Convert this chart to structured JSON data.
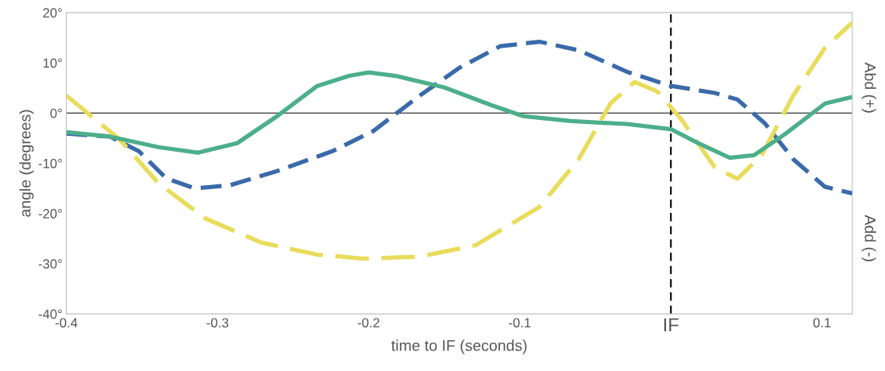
{
  "chart_data": {
    "type": "line",
    "xlabel": "time to IF (seconds)",
    "ylabel": "angle (degrees)",
    "xlim": [
      -0.4,
      0.12
    ],
    "ylim": [
      -40,
      20
    ],
    "xticks": [
      -0.4,
      -0.3,
      -0.2,
      -0.1,
      {
        "value": 0,
        "label": "IF"
      },
      0.1
    ],
    "yticks": [
      {
        "value": -40,
        "label": "-40°"
      },
      {
        "value": -30,
        "label": "-30°"
      },
      {
        "value": -20,
        "label": "-20°"
      },
      {
        "value": -10,
        "label": "-10°"
      },
      {
        "value": 0,
        "label": "0°"
      },
      {
        "value": 10,
        "label": "10°"
      },
      {
        "value": 20,
        "label": "20°"
      }
    ],
    "grid": false,
    "legend": false,
    "ref_lines": [
      {
        "axis": "x",
        "value": 0,
        "color": "#000000",
        "line_style": "dashed"
      },
      {
        "axis": "y",
        "value": 0,
        "color": "#000000",
        "line_style": "solid"
      }
    ],
    "annotations": [
      "Abd (+)",
      "Add (-)"
    ],
    "series": [
      {
        "color": "#3a6aaa",
        "line_style": "dashed",
        "x": [
          -0.4,
          -0.371,
          -0.352,
          -0.334,
          -0.315,
          -0.292,
          -0.26,
          -0.224,
          -0.197,
          -0.166,
          -0.14,
          -0.113,
          -0.087,
          -0.061,
          -0.029,
          0.0,
          0.029,
          0.044,
          0.062,
          0.081,
          0.102,
          0.12
        ],
        "values": [
          -4.1,
          -4.7,
          -7.6,
          -13,
          -15,
          -14.4,
          -11.5,
          -7.6,
          -3.6,
          3.5,
          9,
          13.3,
          14.2,
          12.5,
          8.2,
          5.4,
          4,
          2.7,
          -2,
          -9.2,
          -14.7,
          -16
        ]
      },
      {
        "color": "#e8dc5a",
        "line_style": "dashed",
        "x": [
          -0.4,
          -0.386,
          -0.365,
          -0.339,
          -0.308,
          -0.271,
          -0.234,
          -0.203,
          -0.166,
          -0.129,
          -0.087,
          -0.061,
          -0.04,
          -0.024,
          -0.009,
          0.007,
          0.029,
          0.044,
          0.06,
          0.081,
          0.102,
          0.12
        ],
        "values": [
          3.5,
          0,
          -5.2,
          -14,
          -21,
          -25.8,
          -28.2,
          -29,
          -28.6,
          -26.3,
          -18.7,
          -9.2,
          1.9,
          6.2,
          4.3,
          -1.3,
          -10.8,
          -13.1,
          -8.4,
          3.5,
          13,
          18
        ]
      },
      {
        "color": "#4caf8a",
        "line_style": "solid",
        "x": [
          -0.4,
          -0.371,
          -0.339,
          -0.313,
          -0.287,
          -0.26,
          -0.234,
          -0.213,
          -0.2,
          -0.182,
          -0.15,
          -0.119,
          -0.098,
          -0.066,
          -0.029,
          0.0,
          0.018,
          0.039,
          0.055,
          0.076,
          0.102,
          0.12
        ],
        "values": [
          -3.8,
          -4.7,
          -6.8,
          -7.9,
          -6,
          -0.5,
          5.4,
          7.4,
          8.1,
          7.4,
          5.1,
          1.6,
          -0.6,
          -1.6,
          -2.2,
          -3.2,
          -6,
          -8.9,
          -8.4,
          -4.1,
          1.9,
          3.2
        ]
      }
    ]
  }
}
